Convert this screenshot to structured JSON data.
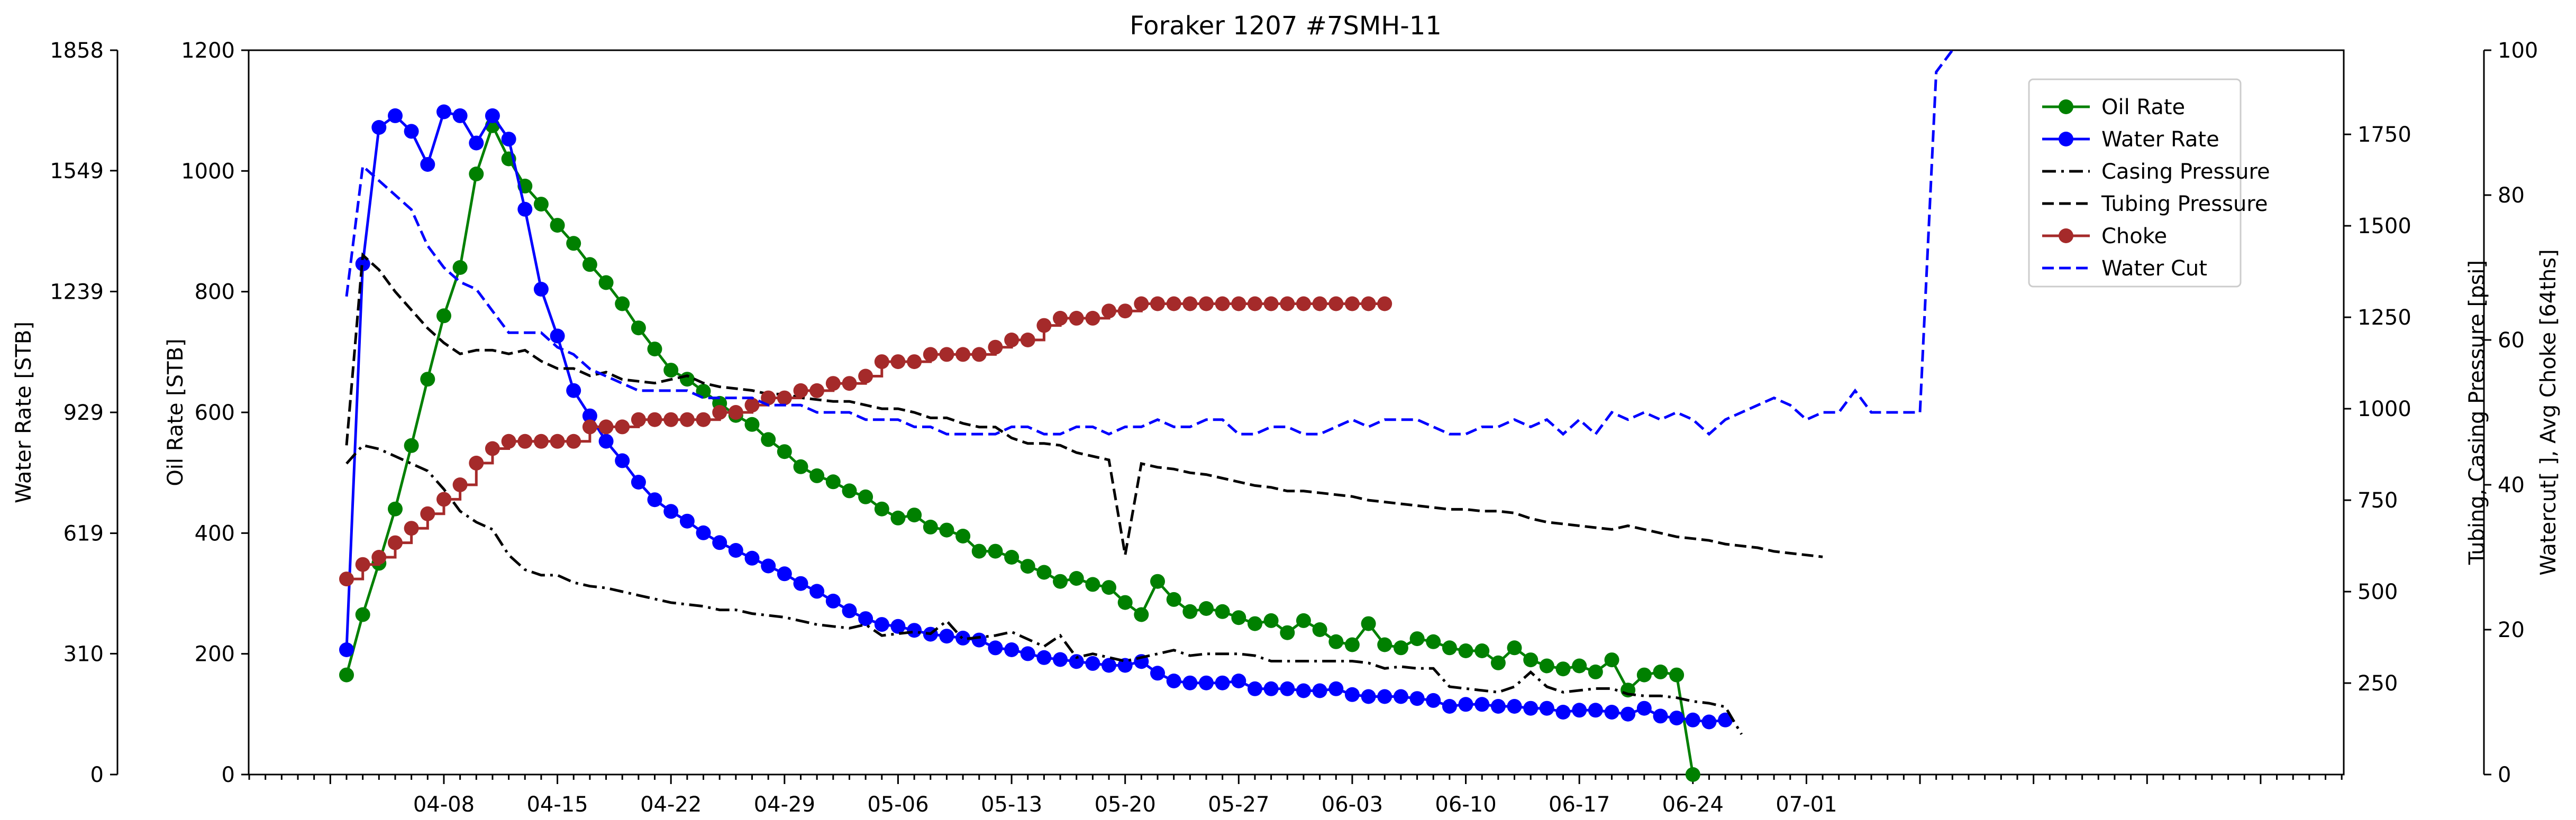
{
  "chart_data": {
    "type": "line",
    "title": "Foraker 1207 #7SMH-11",
    "x_tick_labels": [
      "04-08",
      "04-15",
      "04-22",
      "04-29",
      "05-06",
      "05-13",
      "05-20",
      "05-27",
      "06-03",
      "06-10",
      "06-17",
      "06-24",
      "07-01"
    ],
    "axes": {
      "oil": {
        "label": "Oil Rate [STB]",
        "ylim": [
          0,
          1200
        ],
        "ticks": [
          "0",
          "200",
          "400",
          "600",
          "800",
          "1000",
          "1200"
        ]
      },
      "water": {
        "label": "Water Rate [STB]",
        "ylim": [
          0,
          1858
        ],
        "ticks": [
          "0",
          "310",
          "619",
          "929",
          "1239",
          "1549",
          "1858"
        ]
      },
      "pressure": {
        "label": "Tubing, Casing Pressure [psi]",
        "ylim": [
          0,
          1980
        ],
        "ticks": [
          "250",
          "500",
          "750",
          "1000",
          "1250",
          "1500",
          "1750"
        ]
      },
      "watercut": {
        "label": "Watercut[ ], Avg Choke [64ths]",
        "ylim": [
          0,
          100
        ],
        "ticks": [
          "0",
          "20",
          "40",
          "60",
          "80",
          "100"
        ]
      }
    },
    "legend_position": "upper-right",
    "series": [
      {
        "name": "Oil Rate",
        "axis": "oil",
        "color": "#008000",
        "style": "solid-marker",
        "start": 0,
        "values": [
          165,
          265,
          350,
          440,
          545,
          655,
          760,
          840,
          995,
          1075,
          1020,
          975,
          945,
          910,
          880,
          845,
          815,
          780,
          740,
          705,
          670,
          655,
          635,
          615,
          595,
          580,
          555,
          535,
          510,
          495,
          485,
          470,
          460,
          440,
          425,
          430,
          410,
          405,
          395,
          370,
          370,
          360,
          345,
          335,
          320,
          325,
          315,
          310,
          285,
          265,
          320,
          290,
          270,
          275,
          270,
          260,
          250,
          255,
          235,
          255,
          240,
          220,
          215,
          250,
          215,
          210,
          225,
          220,
          210,
          205,
          205,
          185,
          210,
          190,
          180,
          175,
          180,
          170,
          190,
          140,
          165,
          170,
          165,
          0
        ]
      },
      {
        "name": "Water Rate",
        "axis": "water",
        "color": "#0000ff",
        "style": "solid-marker",
        "start": 0,
        "values": [
          320,
          1310,
          1660,
          1690,
          1650,
          1565,
          1700,
          1690,
          1620,
          1690,
          1630,
          1450,
          1245,
          1125,
          985,
          920,
          855,
          805,
          750,
          705,
          675,
          650,
          620,
          595,
          575,
          555,
          535,
          515,
          490,
          470,
          445,
          420,
          400,
          385,
          380,
          370,
          360,
          355,
          350,
          345,
          325,
          320,
          310,
          300,
          295,
          290,
          285,
          280,
          280,
          290,
          260,
          240,
          235,
          235,
          235,
          240,
          220,
          220,
          220,
          215,
          215,
          220,
          205,
          200,
          200,
          200,
          195,
          190,
          175,
          180,
          180,
          175,
          175,
          170,
          170,
          160,
          165,
          165,
          160,
          155,
          170,
          150,
          145,
          140,
          135,
          140
        ]
      },
      {
        "name": "Casing Pressure",
        "axis": "pressure",
        "color": "#000000",
        "style": "dashdot",
        "start": 0,
        "values": [
          850,
          900,
          890,
          870,
          850,
          830,
          780,
          720,
          690,
          670,
          600,
          560,
          545,
          545,
          525,
          515,
          510,
          500,
          490,
          480,
          470,
          465,
          460,
          450,
          450,
          440,
          435,
          430,
          420,
          410,
          405,
          400,
          410,
          380,
          385,
          390,
          385,
          420,
          370,
          375,
          380,
          390,
          370,
          350,
          380,
          320,
          330,
          320,
          310,
          320,
          330,
          340,
          325,
          330,
          330,
          330,
          325,
          310,
          310,
          310,
          310,
          310,
          310,
          305,
          290,
          295,
          290,
          290,
          240,
          235,
          230,
          225,
          240,
          280,
          240,
          225,
          230,
          235,
          235,
          220,
          215,
          215,
          210,
          200,
          195,
          185,
          110
        ]
      },
      {
        "name": "Tubing Pressure",
        "axis": "pressure",
        "color": "#000000",
        "style": "dashed",
        "start": 0,
        "values": [
          900,
          1420,
          1380,
          1320,
          1270,
          1220,
          1180,
          1150,
          1160,
          1160,
          1150,
          1160,
          1130,
          1110,
          1110,
          1090,
          1100,
          1080,
          1075,
          1070,
          1080,
          1090,
          1070,
          1060,
          1055,
          1050,
          1040,
          1040,
          1030,
          1025,
          1020,
          1020,
          1010,
          1000,
          1000,
          990,
          975,
          975,
          960,
          950,
          950,
          920,
          905,
          905,
          900,
          880,
          870,
          860,
          600,
          850,
          840,
          835,
          825,
          820,
          810,
          800,
          790,
          785,
          775,
          775,
          770,
          765,
          760,
          750,
          745,
          740,
          735,
          730,
          725,
          725,
          720,
          720,
          715,
          700,
          690,
          685,
          680,
          675,
          670,
          680,
          670,
          660,
          650,
          645,
          640,
          630,
          625,
          620,
          610,
          605,
          600,
          595
        ]
      },
      {
        "name": "Choke",
        "axis": "watercut",
        "color": "#a52a2a",
        "style": "steps-post-marker",
        "start": 0,
        "values": [
          27,
          29,
          30,
          32,
          34,
          36,
          38,
          40,
          43,
          45,
          46,
          46,
          46,
          46,
          46,
          48,
          48,
          48,
          49,
          49,
          49,
          49,
          49,
          50,
          50,
          51,
          52,
          52,
          53,
          53,
          54,
          54,
          55,
          57,
          57,
          57,
          58,
          58,
          58,
          58,
          59,
          60,
          60,
          62,
          63,
          63,
          63,
          64,
          64,
          65,
          65,
          65,
          65,
          65,
          65,
          65,
          65,
          65,
          65,
          65,
          65,
          65,
          65,
          65,
          65
        ]
      },
      {
        "name": "Water Cut",
        "axis": "watercut",
        "color": "#0000ff",
        "style": "dashed",
        "start": 0,
        "values": [
          66,
          84,
          82,
          80,
          78,
          73,
          70,
          68,
          67,
          64,
          61,
          61,
          61,
          59,
          58,
          56,
          55,
          54,
          53,
          53,
          53,
          53,
          52,
          52,
          52,
          52,
          51,
          51,
          51,
          50,
          50,
          50,
          49,
          49,
          49,
          48,
          48,
          47,
          47,
          47,
          47,
          48,
          48,
          47,
          47,
          48,
          48,
          47,
          48,
          48,
          49,
          48,
          48,
          49,
          49,
          47,
          47,
          48,
          48,
          47,
          47,
          48,
          49,
          48,
          49,
          49,
          49,
          48,
          47,
          47,
          48,
          48,
          49,
          48,
          49,
          47,
          49,
          47,
          50,
          49,
          50,
          49,
          50,
          49,
          47,
          49,
          50,
          51,
          52,
          51,
          49,
          50,
          50,
          53,
          50,
          50,
          50,
          50,
          97,
          100
        ]
      }
    ]
  }
}
